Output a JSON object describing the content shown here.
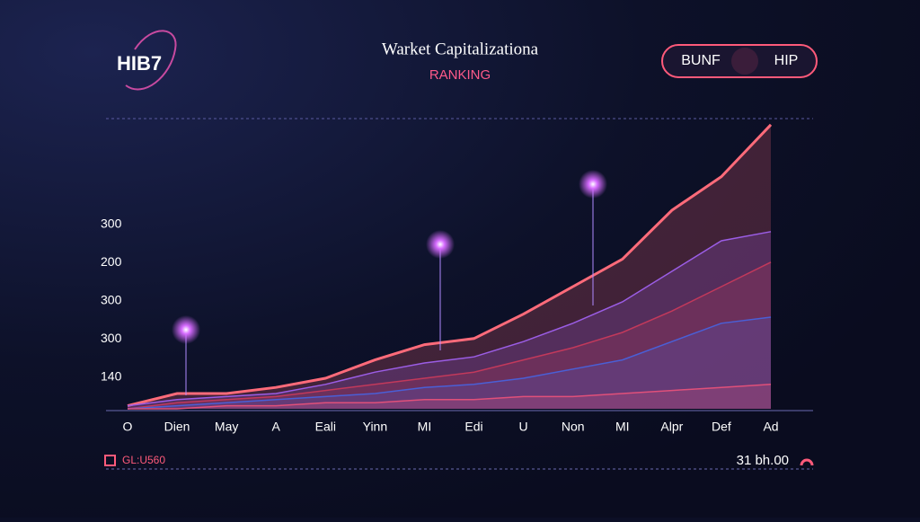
{
  "logo": "HIB7",
  "buttons": [
    "BUNF",
    "HIP"
  ],
  "footer": {
    "left": "GL:U560",
    "right": "31 bh.00"
  },
  "chart_data": {
    "type": "area",
    "title": "Warket Capitalizationa",
    "subtitle": "RANKING",
    "categories": [
      "O",
      "Dien",
      "May",
      "A",
      "Eali",
      "Yinn",
      "MI",
      "Edi",
      "U",
      "Non",
      "MI",
      "Alpr",
      "Def",
      "Ad"
    ],
    "y_labels": [
      "300",
      "200",
      "300",
      "300",
      "140"
    ],
    "ylim": [
      0,
      100
    ],
    "series": [
      {
        "color": "#ff6b7a",
        "values": [
          1,
          5,
          5,
          7,
          10,
          16,
          21,
          23,
          31,
          40,
          49,
          65,
          76,
          93
        ]
      },
      {
        "color": "#9b5de5",
        "values": [
          1,
          3,
          4,
          5,
          8,
          12,
          15,
          17,
          22,
          28,
          35,
          45,
          55,
          58
        ]
      },
      {
        "color": "#c2395b",
        "values": [
          0,
          2,
          3,
          4,
          6,
          8,
          10,
          12,
          16,
          20,
          25,
          32,
          40,
          48
        ]
      },
      {
        "color": "#4a5fd6",
        "values": [
          0,
          1,
          2,
          3,
          4,
          5,
          7,
          8,
          10,
          13,
          16,
          22,
          28,
          30
        ]
      },
      {
        "color": "#e0507a",
        "values": [
          0,
          0,
          1,
          1,
          2,
          2,
          3,
          3,
          4,
          4,
          5,
          6,
          7,
          8
        ]
      }
    ]
  }
}
